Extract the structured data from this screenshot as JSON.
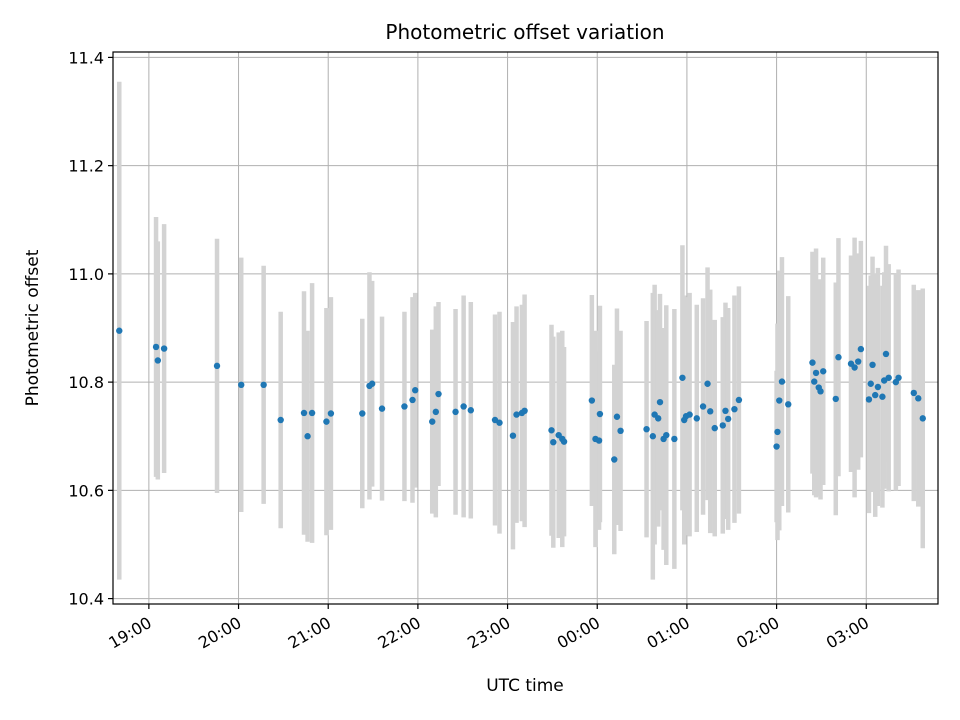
{
  "chart_data": {
    "type": "scatter",
    "title": "Photometric offset variation",
    "xlabel": "UTC time",
    "ylabel": "Photometric offset",
    "x_unit": "hours (UTC, continuing past midnight)",
    "xlim": [
      18.6,
      27.8
    ],
    "ylim": [
      10.39,
      11.41
    ],
    "grid": true,
    "x_ticks": [
      {
        "value": 19,
        "label": "19:00"
      },
      {
        "value": 20,
        "label": "20:00"
      },
      {
        "value": 21,
        "label": "21:00"
      },
      {
        "value": 22,
        "label": "22:00"
      },
      {
        "value": 23,
        "label": "23:00"
      },
      {
        "value": 24,
        "label": "00:00"
      },
      {
        "value": 25,
        "label": "01:00"
      },
      {
        "value": 26,
        "label": "02:00"
      },
      {
        "value": 27,
        "label": "03:00"
      }
    ],
    "y_ticks": [
      {
        "value": 10.4,
        "label": "10.4"
      },
      {
        "value": 10.6,
        "label": "10.6"
      },
      {
        "value": 10.8,
        "label": "10.8"
      },
      {
        "value": 11.0,
        "label": "11.0"
      },
      {
        "value": 11.2,
        "label": "11.2"
      },
      {
        "value": 11.4,
        "label": "11.4"
      }
    ],
    "colors": {
      "point": "#1f77b4",
      "errorbar": "#d3d3d3",
      "grid": "#b0b0b0"
    },
    "series": [
      {
        "points": [
          [
            18.67,
            10.895,
            0.46
          ],
          [
            19.08,
            10.865,
            0.24
          ],
          [
            19.1,
            10.84,
            0.22
          ],
          [
            19.17,
            10.862,
            0.23
          ],
          [
            19.76,
            10.83,
            0.235
          ],
          [
            20.03,
            10.795,
            0.235
          ],
          [
            20.28,
            10.795,
            0.22
          ],
          [
            20.47,
            10.73,
            0.2
          ],
          [
            20.73,
            10.743,
            0.225
          ],
          [
            20.77,
            10.7,
            0.195
          ],
          [
            20.82,
            10.743,
            0.24
          ],
          [
            20.98,
            10.727,
            0.21
          ],
          [
            21.03,
            10.742,
            0.215
          ],
          [
            21.38,
            10.742,
            0.175
          ],
          [
            21.46,
            10.793,
            0.21
          ],
          [
            21.49,
            10.797,
            0.19
          ],
          [
            21.6,
            10.751,
            0.17
          ],
          [
            21.85,
            10.755,
            0.175
          ],
          [
            21.94,
            10.767,
            0.19
          ],
          [
            21.97,
            10.785,
            0.18
          ],
          [
            22.16,
            10.727,
            0.17
          ],
          [
            22.2,
            10.745,
            0.195
          ],
          [
            22.23,
            10.778,
            0.17
          ],
          [
            22.42,
            10.745,
            0.19
          ],
          [
            22.51,
            10.755,
            0.205
          ],
          [
            22.59,
            10.748,
            0.2
          ],
          [
            22.86,
            10.73,
            0.195
          ],
          [
            22.91,
            10.725,
            0.205
          ],
          [
            23.06,
            10.701,
            0.21
          ],
          [
            23.1,
            10.74,
            0.2
          ],
          [
            23.16,
            10.743,
            0.2
          ],
          [
            23.19,
            10.747,
            0.215
          ],
          [
            23.49,
            10.711,
            0.195
          ],
          [
            23.51,
            10.689,
            0.195
          ],
          [
            23.57,
            10.702,
            0.19
          ],
          [
            23.61,
            10.695,
            0.2
          ],
          [
            23.63,
            10.69,
            0.175
          ],
          [
            23.94,
            10.766,
            0.195
          ],
          [
            23.98,
            10.695,
            0.2
          ],
          [
            24.02,
            10.692,
            0.165
          ],
          [
            24.03,
            10.741,
            0.2
          ],
          [
            24.19,
            10.657,
            0.175
          ],
          [
            24.22,
            10.736,
            0.2
          ],
          [
            24.26,
            10.71,
            0.185
          ],
          [
            24.55,
            10.713,
            0.2
          ],
          [
            24.62,
            10.7,
            0.265
          ],
          [
            24.64,
            10.74,
            0.24
          ],
          [
            24.68,
            10.733,
            0.2
          ],
          [
            24.7,
            10.763,
            0.2
          ],
          [
            24.74,
            10.695,
            0.205
          ],
          [
            24.77,
            10.702,
            0.24
          ],
          [
            24.86,
            10.695,
            0.24
          ],
          [
            24.95,
            10.808,
            0.245
          ],
          [
            24.97,
            10.73,
            0.23
          ],
          [
            24.99,
            10.737,
            0.22
          ],
          [
            25.03,
            10.74,
            0.225
          ],
          [
            25.11,
            10.733,
            0.21
          ],
          [
            25.18,
            10.755,
            0.2
          ],
          [
            25.23,
            10.797,
            0.215
          ],
          [
            25.26,
            10.746,
            0.225
          ],
          [
            25.31,
            10.715,
            0.2
          ],
          [
            25.4,
            10.72,
            0.2
          ],
          [
            25.43,
            10.747,
            0.2
          ],
          [
            25.46,
            10.732,
            0.205
          ],
          [
            25.53,
            10.75,
            0.21
          ],
          [
            25.58,
            10.767,
            0.21
          ],
          [
            26.0,
            10.681,
            0.14
          ],
          [
            26.01,
            10.708,
            0.2
          ],
          [
            26.03,
            10.766,
            0.24
          ],
          [
            26.06,
            10.801,
            0.23
          ],
          [
            26.13,
            10.759,
            0.2
          ],
          [
            26.4,
            10.836,
            0.205
          ],
          [
            26.42,
            10.801,
            0.21
          ],
          [
            26.44,
            10.817,
            0.23
          ],
          [
            26.47,
            10.79,
            0.2
          ],
          [
            26.49,
            10.783,
            0.2
          ],
          [
            26.52,
            10.82,
            0.21
          ],
          [
            26.66,
            10.769,
            0.215
          ],
          [
            26.69,
            10.846,
            0.22
          ],
          [
            26.83,
            10.834,
            0.2
          ],
          [
            26.87,
            10.827,
            0.24
          ],
          [
            26.91,
            10.838,
            0.2
          ],
          [
            26.94,
            10.861,
            0.2
          ],
          [
            27.03,
            10.768,
            0.21
          ],
          [
            27.05,
            10.797,
            0.2
          ],
          [
            27.07,
            10.832,
            0.2
          ],
          [
            27.1,
            10.776,
            0.225
          ],
          [
            27.13,
            10.791,
            0.22
          ],
          [
            27.18,
            10.773,
            0.205
          ],
          [
            27.2,
            10.803,
            0.2
          ],
          [
            27.22,
            10.852,
            0.2
          ],
          [
            27.25,
            10.808,
            0.21
          ],
          [
            27.33,
            10.8,
            0.2
          ],
          [
            27.36,
            10.808,
            0.2
          ],
          [
            27.53,
            10.78,
            0.2
          ],
          [
            27.58,
            10.77,
            0.2
          ],
          [
            27.63,
            10.733,
            0.24
          ]
        ]
      }
    ]
  }
}
